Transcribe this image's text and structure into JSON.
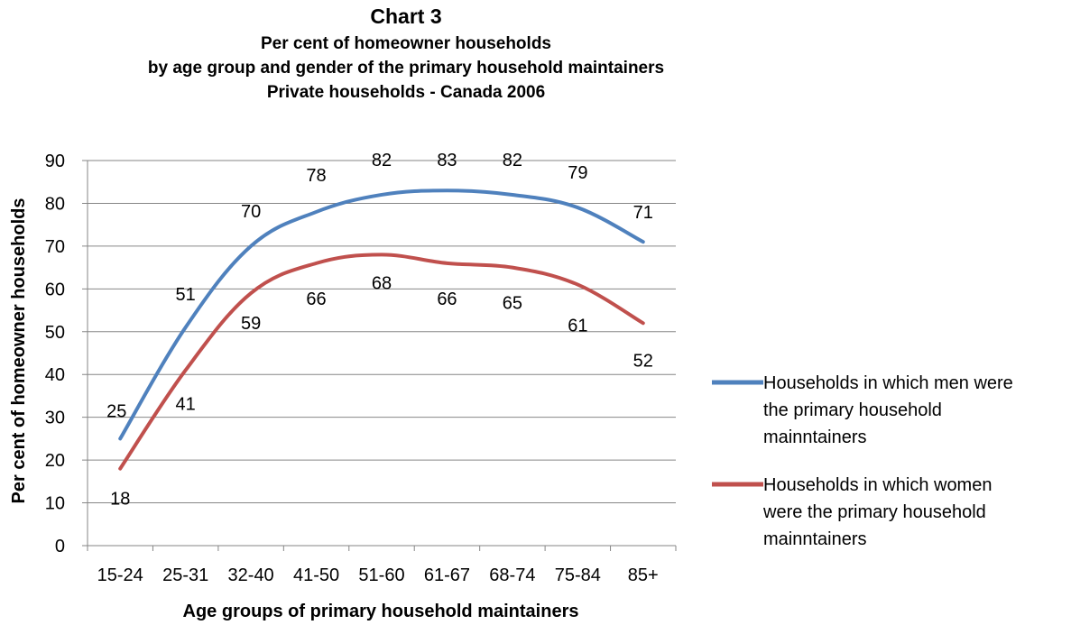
{
  "chart_data": {
    "type": "line",
    "title": "Chart 3",
    "subtitle": [
      "Per cent of homeowner households",
      "by age group and gender of the primary household maintainers",
      "Private households - Canada 2006"
    ],
    "xlabel": "Age groups of primary household maintainers",
    "ylabel": "Per cent of homeowner households",
    "categories": [
      "15-24",
      "25-31",
      "32-40",
      "41-50",
      "51-60",
      "61-67",
      "68-74",
      "75-84",
      "85+"
    ],
    "ylim": [
      0,
      90
    ],
    "yticks": [
      0,
      10,
      20,
      30,
      40,
      50,
      60,
      70,
      80,
      90
    ],
    "grid": true,
    "legend_position": "right",
    "series": [
      {
        "name": "Households in which men were the primary household mainntainers",
        "legend_lines": [
          "Households in which men were",
          "the primary household",
          "mainntainers"
        ],
        "color": "#4f81bd",
        "values": [
          25,
          51,
          70,
          78,
          82,
          83,
          82,
          79,
          71
        ]
      },
      {
        "name": "Households in which women were the primary household mainntainers",
        "legend_lines": [
          "Households in which women",
          "were the primary household",
          "mainntainers"
        ],
        "color": "#c0504d",
        "values": [
          18,
          41,
          59,
          66,
          68,
          66,
          65,
          61,
          52
        ]
      }
    ]
  }
}
